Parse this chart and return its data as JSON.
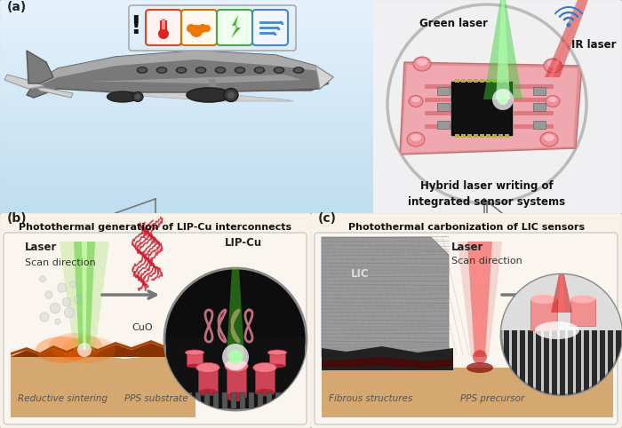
{
  "bg_color": "#ffffff",
  "sky_color": "#cce4f0",
  "sky_color2": "#ddeef8",
  "panel_bc_bg": "#f5ede0",
  "label_a": "(a)",
  "label_b": "(b)",
  "label_c": "(c)",
  "title_b": "Photothermal generation of LIP-Cu interconnects",
  "title_c": "Photothermal carbonization of LIC sensors",
  "green_laser_label": "Green laser",
  "ir_laser_label": "IR laser",
  "hybrid_label": "Hybrid laser writing of\nintegrated sensor systems",
  "laser_b": "Laser",
  "scan_dir_b": "Scan direction",
  "cuo_label": "CuO",
  "lip_cu_label": "LIP-Cu",
  "reductive_label": "Reductive sintering",
  "pps_substrate_label": "PPS substrate",
  "laser_c": "Laser",
  "lic_label": "LIC",
  "scan_dir_c": "Scan direction",
  "fibrous_label": "Fibrous structures",
  "pps_precursor_label": "PPS precursor",
  "airplane_body": "#7a7a7a",
  "airplane_light": "#c5c5c5",
  "airplane_white": "#e8e8e8",
  "engine_dark": "#333333",
  "circle_bg": "#f0f0f0",
  "pcb_pink": "#e8909a",
  "pcb_light_pink": "#f5c0c8",
  "ic_dark": "#1a1a1a",
  "green_beam": "#44cc44",
  "red_beam": "#dd2222",
  "ground_orange": "#cc5500",
  "ground_brown": "#8B5020",
  "ground_tan": "#c8a870",
  "dark_substrate": "#1a1a1a",
  "circle_b_bg": "#111111"
}
